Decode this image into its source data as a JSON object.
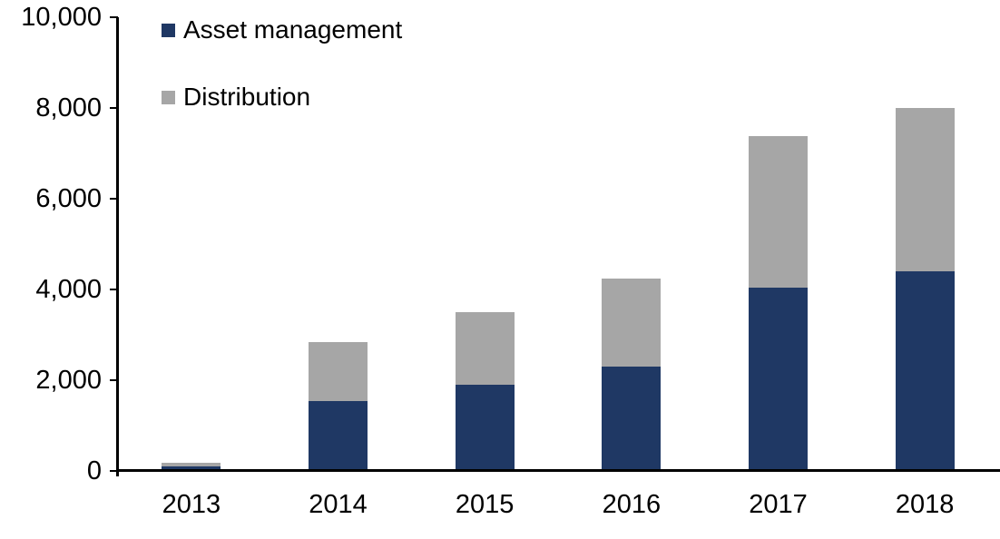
{
  "chart_data": {
    "type": "bar",
    "stacked": true,
    "title": "",
    "xlabel": "",
    "ylabel": "",
    "categories": [
      "2013",
      "2014",
      "2015",
      "2016",
      "2017",
      "2018"
    ],
    "series": [
      {
        "name": "Asset management",
        "color": "#1F3864",
        "values": [
          100,
          1550,
          1900,
          2300,
          4050,
          4400
        ]
      },
      {
        "name": "Distribution",
        "color": "#A6A6A6",
        "values": [
          80,
          1300,
          1600,
          1950,
          3330,
          3600
        ]
      }
    ],
    "totals": [
      180,
      2850,
      3500,
      4250,
      7380,
      8000
    ],
    "ylim": [
      0,
      10000
    ],
    "yticks": [
      0,
      2000,
      4000,
      6000,
      8000,
      10000
    ],
    "ytick_labels": [
      "0",
      "2,000",
      "4,000",
      "6,000",
      "8,000",
      "10,000"
    ],
    "grid": false,
    "legend_position": "top-left-inside",
    "axis_color": "#000000"
  }
}
